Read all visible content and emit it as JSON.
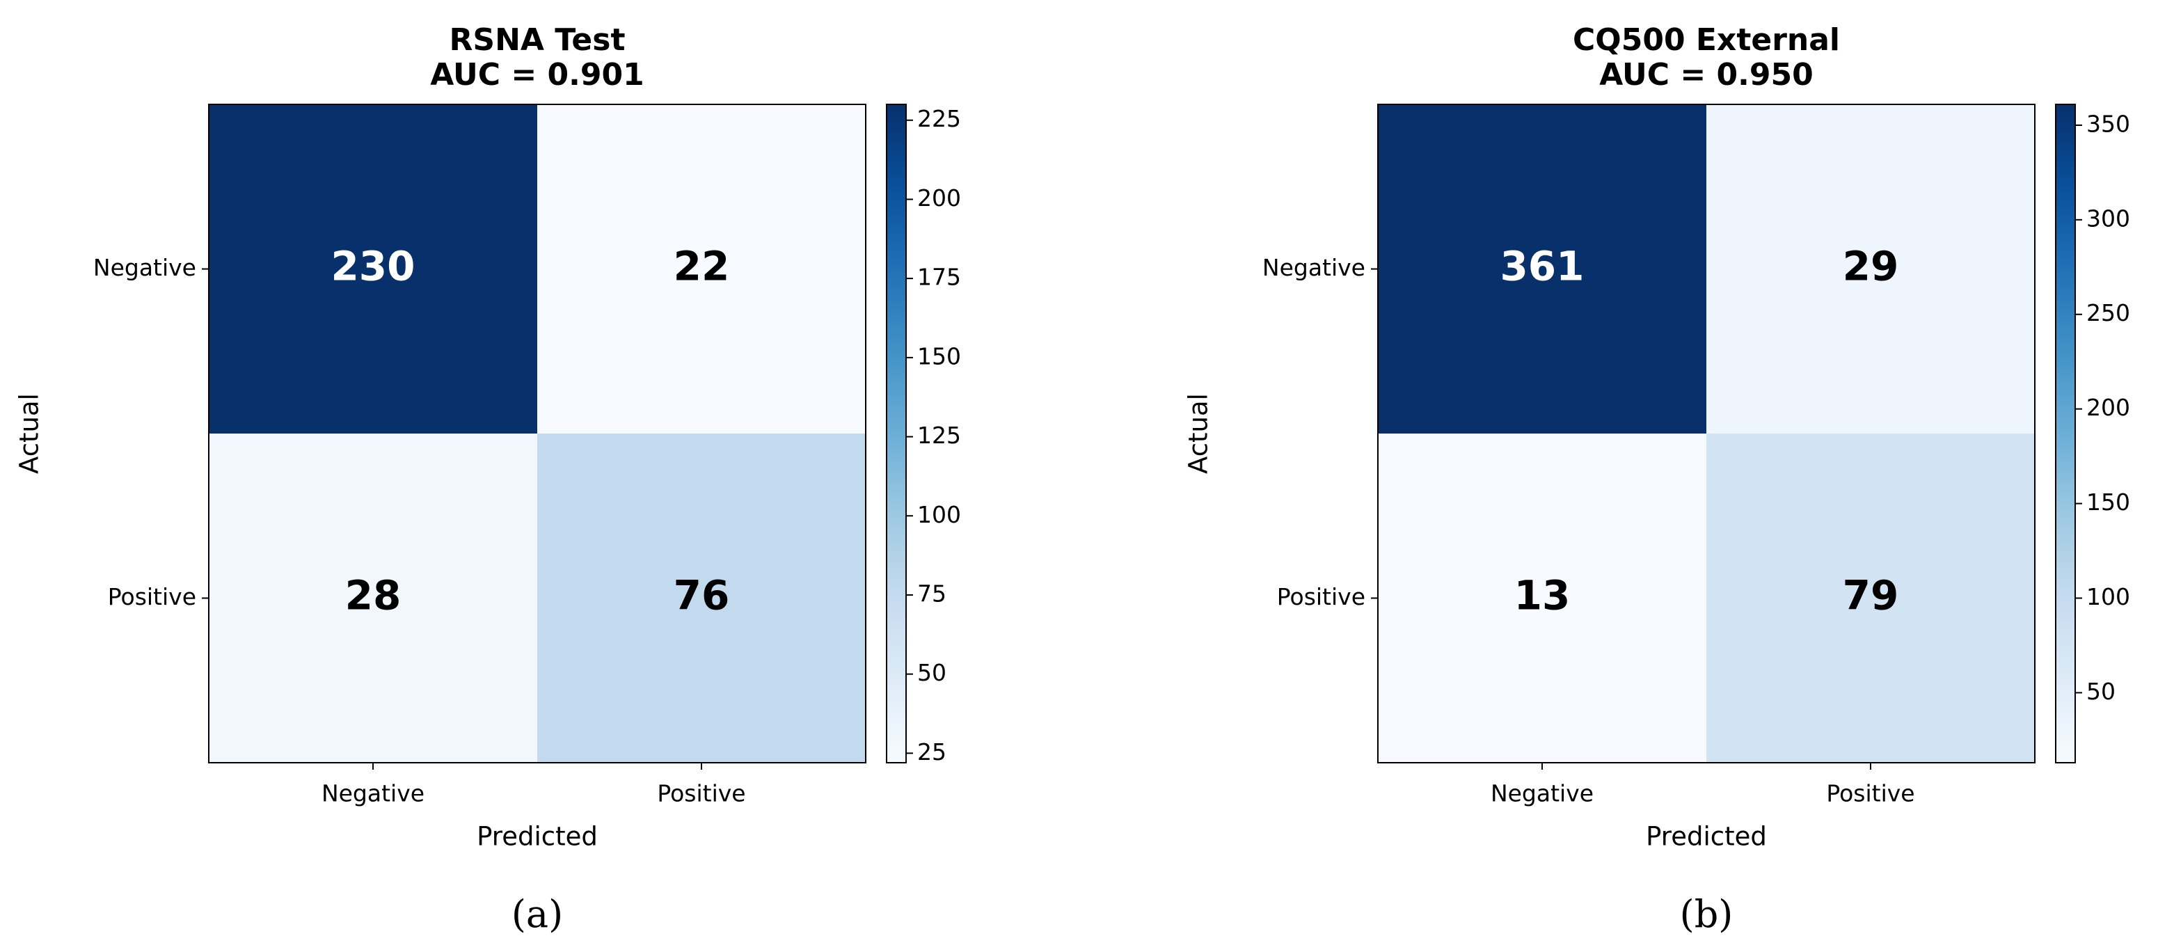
{
  "chart_data": [
    {
      "type": "heatmap",
      "title": "RSNA Test",
      "subtitle": "AUC = 0.901",
      "x_categories": [
        "Negative",
        "Positive"
      ],
      "y_categories": [
        "Negative",
        "Positive"
      ],
      "values": [
        [
          230,
          22
        ],
        [
          28,
          76
        ]
      ],
      "xlabel": "Predicted",
      "ylabel": "Actual",
      "colormap": "Blues",
      "clim": [
        22,
        230
      ],
      "cticks": [
        25,
        50,
        75,
        100,
        125,
        150,
        175,
        200,
        225
      ],
      "panel_label": "(a)"
    },
    {
      "type": "heatmap",
      "title": "CQ500 External",
      "subtitle": "AUC = 0.950",
      "x_categories": [
        "Negative",
        "Positive"
      ],
      "y_categories": [
        "Negative",
        "Positive"
      ],
      "values": [
        [
          361,
          29
        ],
        [
          13,
          79
        ]
      ],
      "xlabel": "Predicted",
      "ylabel": "Actual",
      "colormap": "Blues",
      "clim": [
        13,
        361
      ],
      "cticks": [
        50,
        100,
        150,
        200,
        250,
        300,
        350
      ],
      "panel_label": "(b)"
    }
  ]
}
